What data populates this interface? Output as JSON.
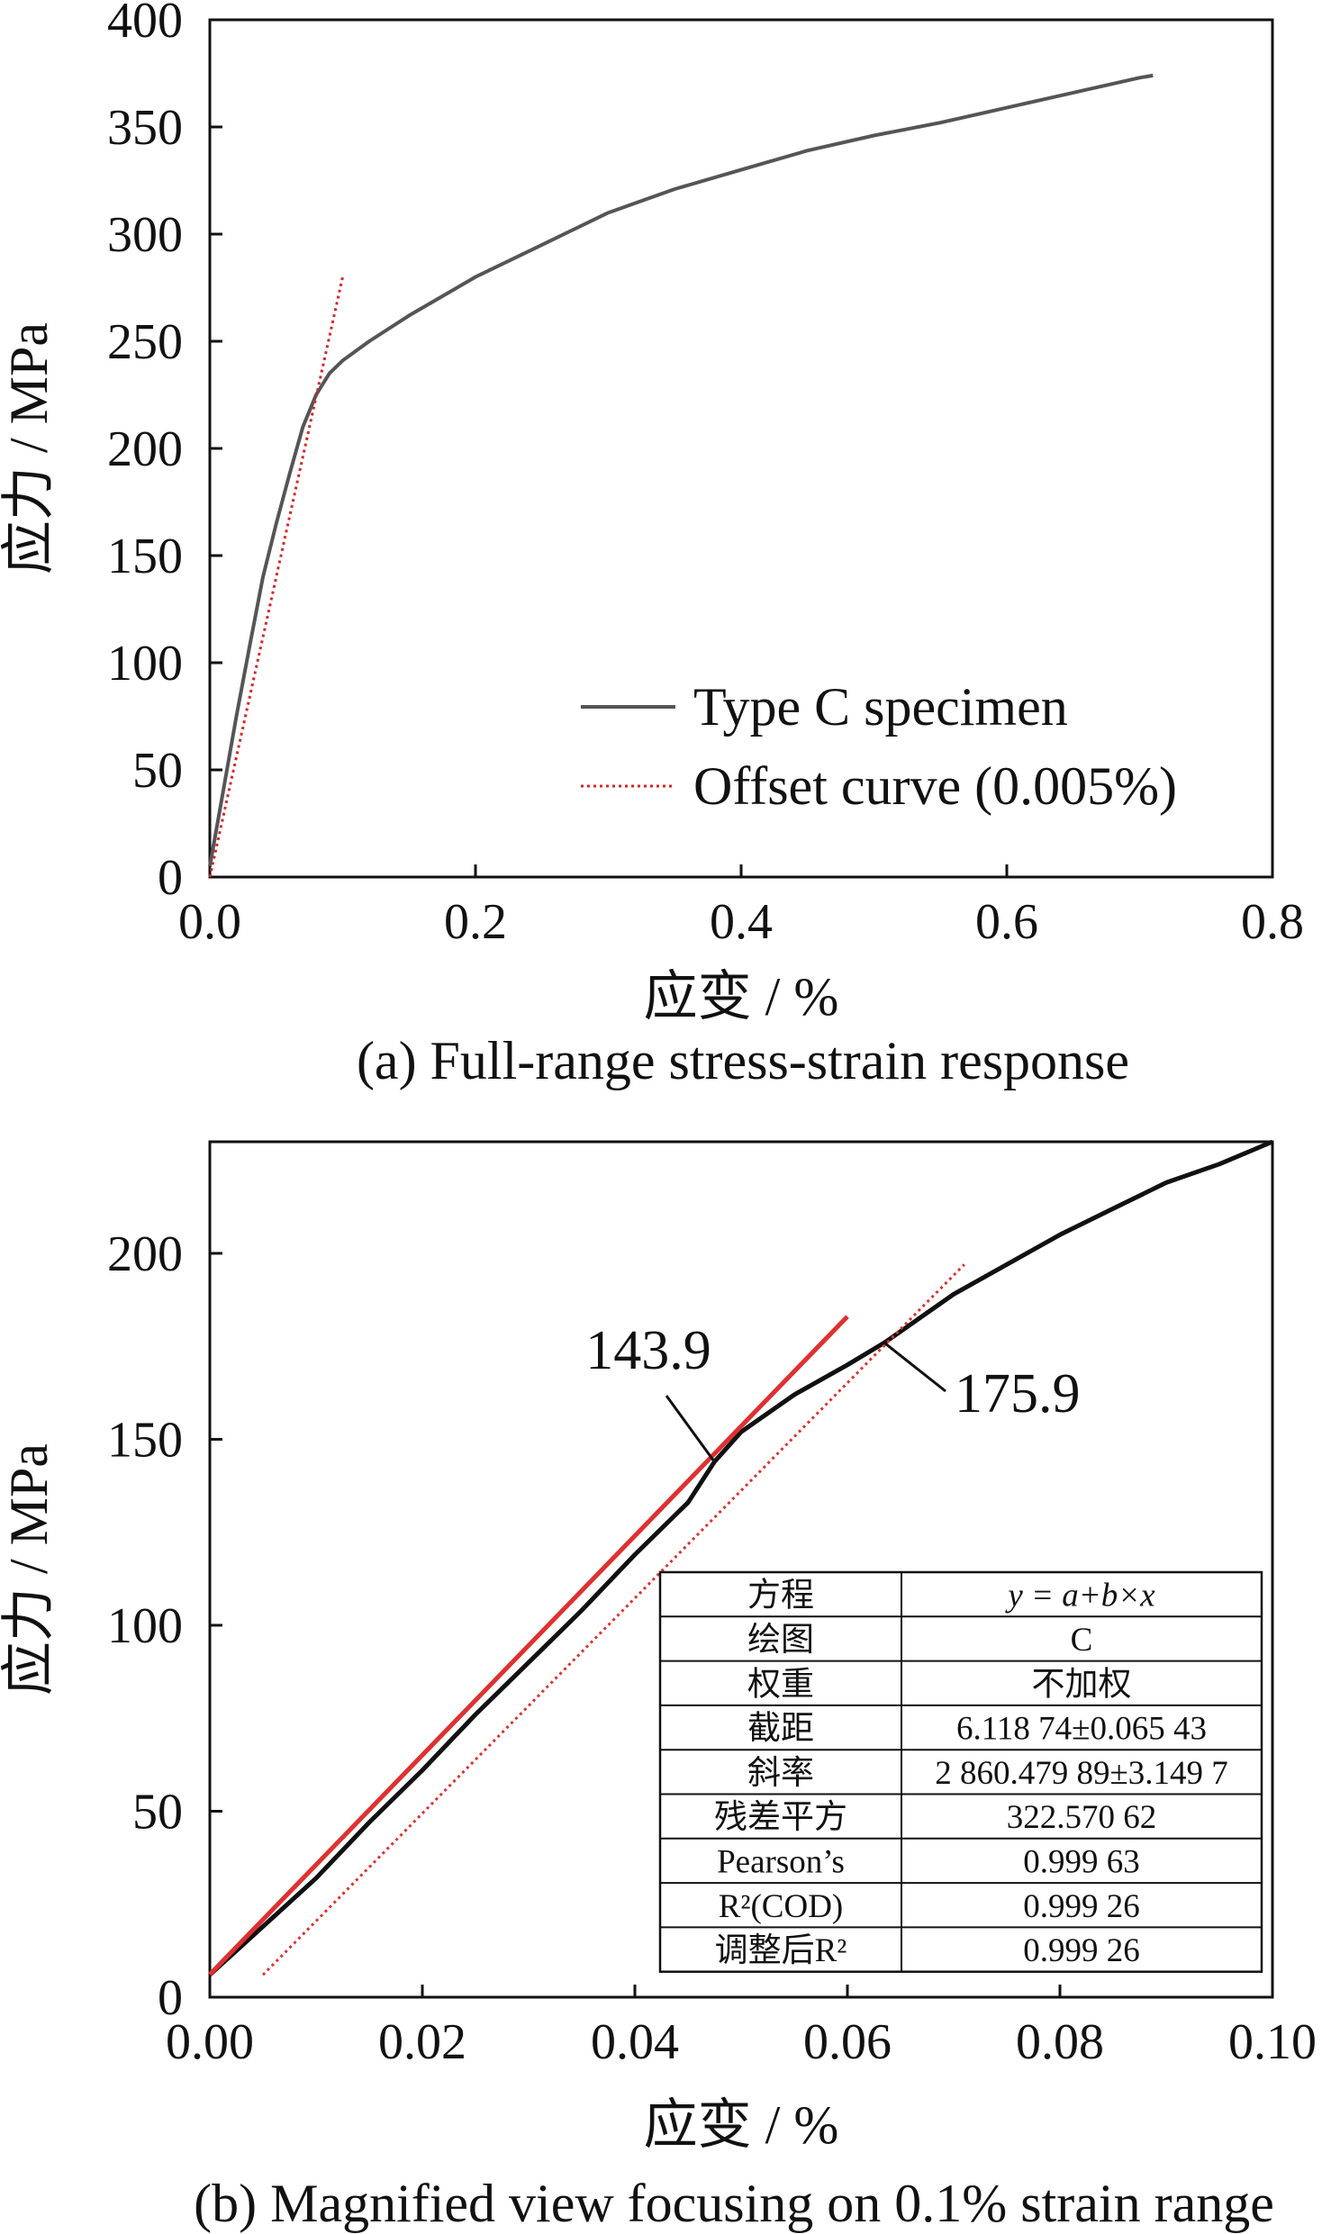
{
  "chart_data": [
    {
      "type": "line",
      "caption": "(a) Full-range stress-strain response",
      "xlabel": "应变 / %",
      "ylabel": "应力 / MPa",
      "xlim": [
        0,
        0.8
      ],
      "ylim": [
        0,
        400
      ],
      "xticks": [
        "0.0",
        "0.2",
        "0.4",
        "0.6",
        "0.8"
      ],
      "yticks": [
        "0",
        "50",
        "100",
        "150",
        "200",
        "250",
        "300",
        "350",
        "400"
      ],
      "legend_position": "bottom-right",
      "series": [
        {
          "name": "Type C specimen",
          "color": "#555555",
          "style": "solid",
          "x": [
            0.0,
            0.01,
            0.02,
            0.03,
            0.04,
            0.05,
            0.06,
            0.07,
            0.08,
            0.09,
            0.1,
            0.12,
            0.15,
            0.2,
            0.25,
            0.3,
            0.35,
            0.4,
            0.45,
            0.5,
            0.55,
            0.6,
            0.65,
            0.7,
            0.71
          ],
          "y": [
            5,
            40,
            75,
            108,
            140,
            165,
            188,
            210,
            225,
            235,
            241,
            250,
            262,
            280,
            295,
            310,
            321,
            330,
            339,
            346,
            352,
            359,
            366,
            373,
            374
          ]
        },
        {
          "name": "Offset curve (0.005%)",
          "color": "#d62728",
          "style": "dotted",
          "x": [
            0.0,
            0.1
          ],
          "y": [
            0,
            280
          ]
        }
      ]
    },
    {
      "type": "line",
      "caption": "(b) Magnified view focusing on 0.1% strain range",
      "xlabel": "应变 / %",
      "ylabel": "应力 / MPa",
      "xlim": [
        0,
        0.1
      ],
      "ylim": [
        0,
        230
      ],
      "xticks": [
        "0.00",
        "0.02",
        "0.04",
        "0.06",
        "0.08",
        "0.10"
      ],
      "yticks": [
        "0",
        "50",
        "100",
        "150",
        "200"
      ],
      "series": [
        {
          "name": "C",
          "color": "#111111",
          "style": "solid",
          "x": [
            0.0,
            0.005,
            0.01,
            0.015,
            0.02,
            0.025,
            0.03,
            0.035,
            0.04,
            0.045,
            0.0475,
            0.05,
            0.055,
            0.06,
            0.0635,
            0.065,
            0.07,
            0.075,
            0.08,
            0.085,
            0.09,
            0.095,
            0.1
          ],
          "y": [
            6,
            19,
            32,
            47,
            61,
            76,
            90,
            104,
            119,
            133,
            144,
            152,
            162,
            170,
            176,
            179,
            189,
            197,
            205,
            212,
            219,
            224,
            230
          ]
        },
        {
          "name": "fit",
          "color": "#e03030",
          "style": "solid",
          "x": [
            0.0,
            0.06
          ],
          "y": [
            6.12,
            183.0
          ]
        },
        {
          "name": "offset",
          "color": "#e03030",
          "style": "dotted",
          "x": [
            0.005,
            0.071
          ],
          "y": [
            6,
            197
          ]
        }
      ],
      "annotations": [
        {
          "text": "143.9",
          "x": 0.0475,
          "y": 143.9
        },
        {
          "text": "175.9",
          "x": 0.0635,
          "y": 175.9
        }
      ],
      "fit_table": [
        [
          "方程",
          "y = a+b×x"
        ],
        [
          "绘图",
          "C"
        ],
        [
          "权重",
          "不加权"
        ],
        [
          "截距",
          "6.118 74±0.065 43"
        ],
        [
          "斜率",
          "2 860.479 89±3.149 7"
        ],
        [
          "残差平方",
          "322.570 62"
        ],
        [
          "Pearson’s",
          "0.999 63"
        ],
        [
          "R²(COD)",
          "0.999 26"
        ],
        [
          "调整后R²",
          "0.999 26"
        ]
      ]
    }
  ]
}
